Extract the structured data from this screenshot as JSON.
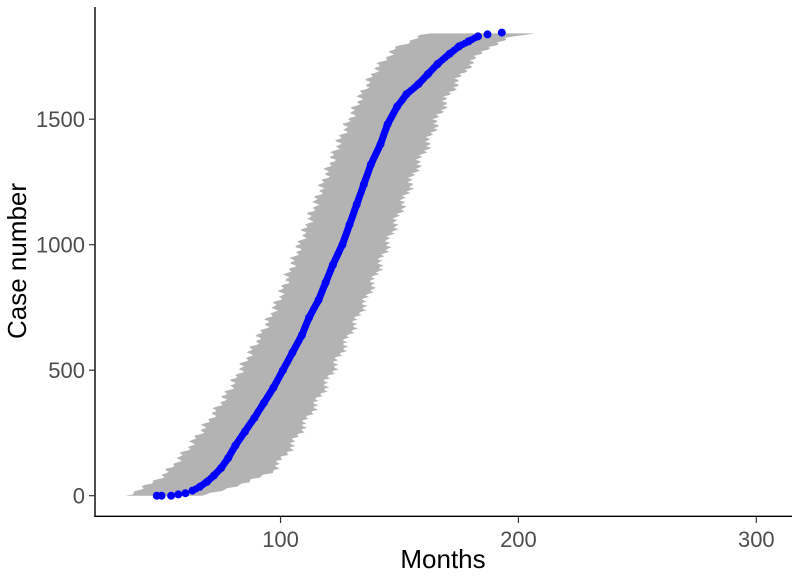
{
  "chart_data": {
    "type": "scatter",
    "title": "",
    "xlabel": "Months",
    "ylabel": "Case number",
    "xlim": [
      22,
      315
    ],
    "ylim": [
      -85,
      1947
    ],
    "x_ticks": [
      100,
      200,
      300
    ],
    "y_ticks": [
      0,
      500,
      1000,
      1500
    ],
    "grid": false,
    "legend": "none",
    "point_color": "#0000ff",
    "band_color": "#b3b3b3",
    "series": [
      {
        "values": [
          {
            "case": 0,
            "months": 48
          },
          {
            "case": 0,
            "months": 50
          },
          {
            "case": 0,
            "months": 54
          },
          {
            "case": 5,
            "months": 57
          },
          {
            "case": 10,
            "months": 60
          },
          {
            "case": 20,
            "months": 63
          },
          {
            "case": 35,
            "months": 66
          },
          {
            "case": 55,
            "months": 69
          },
          {
            "case": 80,
            "months": 72
          },
          {
            "case": 110,
            "months": 75
          },
          {
            "case": 150,
            "months": 78
          },
          {
            "case": 200,
            "months": 81
          },
          {
            "case": 255,
            "months": 85
          },
          {
            "case": 310,
            "months": 89
          },
          {
            "case": 370,
            "months": 93
          },
          {
            "case": 430,
            "months": 97
          },
          {
            "case": 500,
            "months": 101
          },
          {
            "case": 570,
            "months": 105
          },
          {
            "case": 640,
            "months": 109
          },
          {
            "case": 710,
            "months": 112
          },
          {
            "case": 780,
            "months": 116
          },
          {
            "case": 850,
            "months": 119
          },
          {
            "case": 920,
            "months": 122
          },
          {
            "case": 1000,
            "months": 126
          },
          {
            "case": 1080,
            "months": 129
          },
          {
            "case": 1160,
            "months": 132
          },
          {
            "case": 1240,
            "months": 135
          },
          {
            "case": 1320,
            "months": 138
          },
          {
            "case": 1400,
            "months": 142
          },
          {
            "case": 1480,
            "months": 145
          },
          {
            "case": 1550,
            "months": 149
          },
          {
            "case": 1600,
            "months": 153
          },
          {
            "case": 1640,
            "months": 158
          },
          {
            "case": 1680,
            "months": 162
          },
          {
            "case": 1720,
            "months": 166
          },
          {
            "case": 1760,
            "months": 171
          },
          {
            "case": 1790,
            "months": 175
          },
          {
            "case": 1810,
            "months": 179
          },
          {
            "case": 1830,
            "months": 183
          },
          {
            "case": 1838,
            "months": 187
          },
          {
            "case": 1845,
            "months": 193
          }
        ]
      }
    ],
    "band": [
      {
        "case": 0,
        "low": 35,
        "high": 66
      },
      {
        "case": 50,
        "low": 46,
        "high": 86
      },
      {
        "case": 100,
        "low": 53,
        "high": 97
      },
      {
        "case": 200,
        "low": 62,
        "high": 105
      },
      {
        "case": 300,
        "low": 70,
        "high": 111
      },
      {
        "case": 400,
        "low": 77,
        "high": 117
      },
      {
        "case": 500,
        "low": 83,
        "high": 122
      },
      {
        "case": 600,
        "low": 89,
        "high": 127
      },
      {
        "case": 700,
        "low": 95,
        "high": 132
      },
      {
        "case": 800,
        "low": 100,
        "high": 137
      },
      {
        "case": 900,
        "low": 104,
        "high": 141
      },
      {
        "case": 1000,
        "low": 108,
        "high": 145
      },
      {
        "case": 1100,
        "low": 112,
        "high": 149
      },
      {
        "case": 1200,
        "low": 116,
        "high": 153
      },
      {
        "case": 1300,
        "low": 120,
        "high": 157
      },
      {
        "case": 1400,
        "low": 124,
        "high": 162
      },
      {
        "case": 1500,
        "low": 129,
        "high": 166
      },
      {
        "case": 1600,
        "low": 134,
        "high": 171
      },
      {
        "case": 1700,
        "low": 140,
        "high": 178
      },
      {
        "case": 1780,
        "low": 148,
        "high": 186
      },
      {
        "case": 1830,
        "low": 158,
        "high": 198
      },
      {
        "case": 1845,
        "low": 165,
        "high": 211
      }
    ]
  }
}
